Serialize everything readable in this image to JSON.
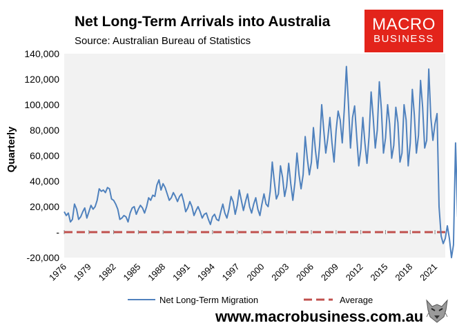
{
  "title": "Net Long-Term Arrivals into Australia",
  "subtitle": "Source: Australian Bureau of Statistics",
  "logo": {
    "line1": "MACRO",
    "line2": "BUSINESS"
  },
  "footer": {
    "url": "www.macrobusiness.com.au",
    "mascot_icon": "wolf-icon"
  },
  "colors": {
    "series": "#4f81bd",
    "average": "#c0504d",
    "plot_bg": "#f2f2f2",
    "brand": "#e3241b"
  },
  "chart_data": {
    "type": "line",
    "title": "Net Long-Term Arrivals into Australia",
    "ylabel": "Quarterly",
    "xlabel": "",
    "ylim": [
      -20000,
      140000
    ],
    "xlim": [
      1976.0,
      2022.25
    ],
    "yticks": [
      {
        "value": -20000,
        "label": "-20,000"
      },
      {
        "value": 0,
        "label": "-"
      },
      {
        "value": 20000,
        "label": "20,000"
      },
      {
        "value": 40000,
        "label": "40,000"
      },
      {
        "value": 60000,
        "label": "60,000"
      },
      {
        "value": 80000,
        "label": "80,000"
      },
      {
        "value": 100000,
        "label": "100,000"
      },
      {
        "value": 120000,
        "label": "120,000"
      },
      {
        "value": 140000,
        "label": "140,000"
      }
    ],
    "xticks": [
      "1976",
      "1979",
      "1982",
      "1985",
      "1988",
      "1991",
      "1994",
      "1997",
      "2000",
      "2003",
      "2006",
      "2009",
      "2012",
      "2015",
      "2018",
      "2021"
    ],
    "legend": {
      "placement": "bottom"
    },
    "series": [
      {
        "name": "Net Long-Term Migration",
        "x_start": 1976.0,
        "x_step": 0.25,
        "values": [
          16000,
          13000,
          15000,
          8000,
          10000,
          22000,
          18000,
          10000,
          12000,
          16000,
          19000,
          11000,
          16000,
          21000,
          18000,
          20000,
          25000,
          34000,
          32000,
          33000,
          31000,
          35000,
          34000,
          26000,
          25000,
          22000,
          18000,
          10000,
          11000,
          13000,
          12000,
          8000,
          15000,
          19000,
          20000,
          14000,
          18000,
          21000,
          19000,
          15000,
          20000,
          27000,
          25000,
          29000,
          28000,
          37000,
          41000,
          33000,
          38000,
          35000,
          30000,
          25000,
          27000,
          31000,
          28000,
          24000,
          28000,
          30000,
          24000,
          16000,
          19000,
          24000,
          20000,
          13000,
          17000,
          20000,
          16000,
          11000,
          14000,
          15000,
          10000,
          6000,
          12000,
          14000,
          10000,
          9000,
          16000,
          22000,
          15000,
          11000,
          18000,
          28000,
          24000,
          14000,
          21000,
          33000,
          25000,
          17000,
          24000,
          30000,
          20000,
          15000,
          22000,
          27000,
          18000,
          13000,
          22000,
          30000,
          22000,
          20000,
          32000,
          55000,
          40000,
          26000,
          30000,
          52000,
          43000,
          28000,
          36000,
          54000,
          38000,
          25000,
          39000,
          62000,
          45000,
          34000,
          45000,
          75000,
          58000,
          45000,
          55000,
          82000,
          64000,
          50000,
          68000,
          100000,
          80000,
          62000,
          74000,
          90000,
          70000,
          55000,
          80000,
          95000,
          88000,
          70000,
          97000,
          130000,
          100000,
          66000,
          90000,
          99000,
          75000,
          52000,
          65000,
          90000,
          70000,
          54000,
          75000,
          110000,
          90000,
          66000,
          80000,
          118000,
          96000,
          62000,
          74000,
          100000,
          85000,
          58000,
          68000,
          98000,
          86000,
          55000,
          62000,
          100000,
          88000,
          52000,
          70000,
          112000,
          92000,
          62000,
          76000,
          119000,
          98000,
          66000,
          72000,
          128000,
          90000,
          72000,
          85000,
          93000,
          20000,
          -3000,
          -9000,
          -5000,
          5000,
          -5000,
          -20000,
          -10000,
          70000,
          12000
        ]
      },
      {
        "name": "Average",
        "style": "dashed",
        "values": [
          0,
          0
        ]
      }
    ]
  }
}
